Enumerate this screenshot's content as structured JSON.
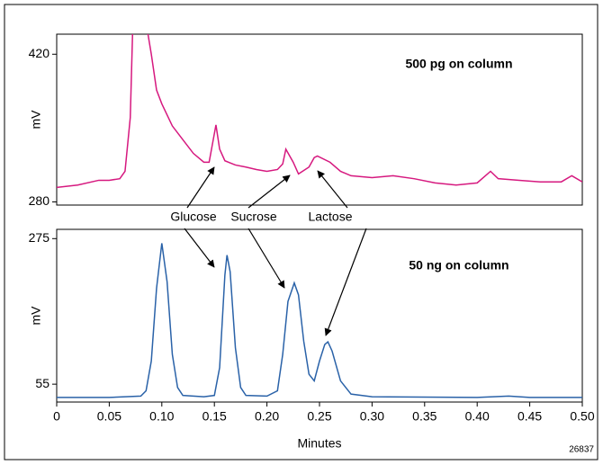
{
  "chart_data": [
    {
      "type": "line",
      "ylabel": "mV",
      "annotation": "500 pg on column",
      "xlim": [
        0,
        0.5
      ],
      "ylim": [
        277,
        439
      ],
      "yticks": [
        280,
        420
      ],
      "series": [
        {
          "color": "#d6197f",
          "x": [
            0,
            0.02,
            0.04,
            0.05,
            0.06,
            0.065,
            0.07,
            0.073,
            0.08,
            0.09,
            0.095,
            0.1,
            0.11,
            0.12,
            0.13,
            0.14,
            0.145,
            0.1515,
            0.155,
            0.16,
            0.17,
            0.18,
            0.19,
            0.2,
            0.21,
            0.215,
            0.218,
            0.225,
            0.23,
            0.24,
            0.245,
            0.248,
            0.26,
            0.27,
            0.28,
            0.3,
            0.32,
            0.34,
            0.36,
            0.38,
            0.4,
            0.4127,
            0.42,
            0.44,
            0.46,
            0.48,
            0.49,
            0.5
          ],
          "values": [
            293.7,
            296,
            300.5,
            300.5,
            302,
            309,
            360,
            470,
            480,
            420,
            386,
            373,
            352,
            339,
            326,
            317.6,
            317.6,
            353,
            330,
            319,
            315,
            313,
            310.7,
            309,
            310.7,
            316,
            330,
            317.6,
            306.5,
            313,
            322,
            323.5,
            317.6,
            309,
            304.8,
            303,
            304.8,
            302,
            298,
            296,
            298,
            309,
            302,
            300.5,
            299,
            299,
            304.8,
            299
          ]
        }
      ]
    },
    {
      "type": "line",
      "ylabel": "mV",
      "annotation": "50 ng on column",
      "xlabel": "Minutes",
      "xlim": [
        0,
        0.5
      ],
      "ylim": [
        28,
        289
      ],
      "yticks": [
        55,
        275
      ],
      "xticks": [
        0,
        0.05,
        {
          "value": 0.1,
          "label": "0.10"
        },
        0.15,
        {
          "value": 0.2,
          "label": "0.20"
        },
        0.25,
        {
          "value": 0.3,
          "label": "0.30"
        },
        0.35,
        {
          "value": 0.4,
          "label": "0.40"
        },
        0.45,
        {
          "value": 0.5,
          "label": "0.50"
        }
      ],
      "series": [
        {
          "color": "#2a62a8",
          "x": [
            0,
            0.05,
            0.08,
            0.085,
            0.09,
            0.095,
            0.1,
            0.105,
            0.11,
            0.115,
            0.12,
            0.14,
            0.15,
            0.155,
            0.16,
            0.162,
            0.165,
            0.17,
            0.175,
            0.18,
            0.2,
            0.21,
            0.215,
            0.22,
            0.226,
            0.23,
            0.235,
            0.24,
            0.245,
            0.25,
            0.255,
            0.258,
            0.262,
            0.27,
            0.28,
            0.3,
            0.4,
            0.43,
            0.45,
            0.5
          ],
          "values": [
            35,
            35,
            37,
            45,
            90,
            200,
            268,
            210,
            100,
            50,
            38,
            36,
            38,
            80,
            220,
            250,
            225,
            110,
            50,
            38,
            37,
            45,
            100,
            180,
            208,
            190,
            120,
            70,
            60,
            90,
            115,
            119,
            105,
            60,
            40,
            36,
            35,
            37,
            35,
            35
          ]
        }
      ]
    }
  ],
  "peak_labels": [
    "Glucose",
    "Sucrose",
    "Lactose"
  ],
  "figure_id": "26837"
}
